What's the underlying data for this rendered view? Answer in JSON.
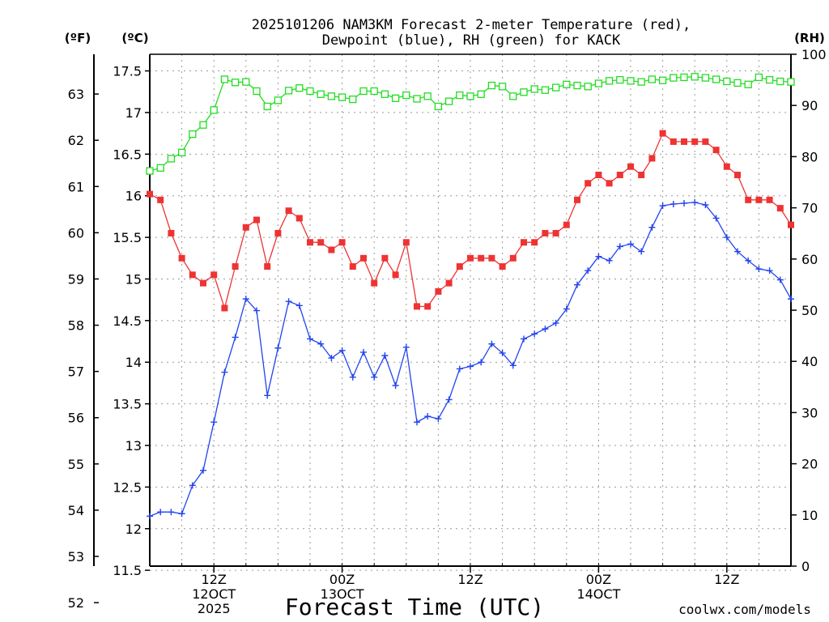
{
  "title_line1": "2025101206 NAM3KM Forecast 2-meter Temperature (red),",
  "title_line2": "Dewpoint (blue), RH (green) for KACK",
  "unit_f": "(ºF)",
  "unit_c": "(ºC)",
  "unit_rh": "(RH)",
  "xlabel": "Forecast Time (UTC)",
  "credit": "coolwx.com/models",
  "colors": {
    "temperature": "#ee3333",
    "dewpoint": "#2244ee",
    "rh": "#22dd22",
    "grid": "#999999"
  },
  "chart_data": {
    "type": "line",
    "title": "2025101206 NAM3KM Forecast 2-meter Temperature (red), Dewpoint (blue), RH (green) for KACK",
    "xlabel": "Forecast Time (UTC)",
    "x_unit": "forecast hour from 2025-10-12 06Z",
    "xlim": [
      0,
      60
    ],
    "x_ticks": [
      {
        "hour": 6,
        "lines": [
          "12Z",
          "12OCT",
          "2025"
        ]
      },
      {
        "hour": 18,
        "lines": [
          "00Z",
          "13OCT"
        ]
      },
      {
        "hour": 30,
        "lines": [
          "12Z"
        ]
      },
      {
        "hour": 42,
        "lines": [
          "00Z",
          "14OCT"
        ]
      },
      {
        "hour": 54,
        "lines": [
          "12Z"
        ]
      }
    ],
    "ylim_c": [
      11.55,
      17.7
    ],
    "y_ticks_c": [
      11.5,
      12,
      12.5,
      13,
      13.5,
      14,
      14.5,
      15,
      15.5,
      16,
      16.5,
      17,
      17.5
    ],
    "y_tick_labels_c": [
      "11.5",
      "12",
      "12.5",
      "13",
      "13.5",
      "14",
      "14.5",
      "15",
      "15.5",
      "16",
      "16.5",
      "17",
      "17.5"
    ],
    "y_ticks_f": [
      52,
      53,
      54,
      55,
      56,
      57,
      58,
      59,
      60,
      61,
      62,
      63
    ],
    "y_tick_labels_f": [
      "52",
      "53",
      "54",
      "55",
      "56",
      "57",
      "58",
      "59",
      "60",
      "61",
      "62",
      "63"
    ],
    "ylim_rh": [
      0,
      100
    ],
    "y_ticks_rh": [
      0,
      10,
      20,
      30,
      40,
      50,
      60,
      70,
      80,
      90,
      100
    ],
    "y_tick_labels_rh": [
      "0",
      "10",
      "20",
      "30",
      "40",
      "50",
      "60",
      "70",
      "80",
      "90",
      "100"
    ],
    "hours": [
      0,
      1,
      2,
      3,
      4,
      5,
      6,
      7,
      8,
      9,
      10,
      11,
      12,
      13,
      14,
      15,
      16,
      17,
      18,
      19,
      20,
      21,
      22,
      23,
      24,
      25,
      26,
      27,
      28,
      29,
      30,
      31,
      32,
      33,
      34,
      35,
      36,
      37,
      38,
      39,
      40,
      41,
      42,
      43,
      44,
      45,
      46,
      47,
      48,
      49,
      50,
      51,
      52,
      53,
      54,
      55,
      56,
      57,
      58,
      59,
      60
    ],
    "series": [
      {
        "name": "Temperature (red)",
        "unit": "C",
        "values": [
          16.02,
          15.95,
          15.55,
          15.25,
          15.05,
          14.95,
          15.05,
          14.65,
          15.15,
          15.62,
          15.71,
          15.15,
          15.55,
          15.82,
          15.73,
          15.44,
          15.44,
          15.35,
          15.44,
          15.15,
          15.25,
          14.95,
          15.25,
          15.05,
          15.44,
          14.67,
          14.67,
          14.85,
          14.95,
          15.15,
          15.25,
          15.25,
          15.25,
          15.15,
          15.25,
          15.44,
          15.44,
          15.55,
          15.55,
          15.65,
          15.95,
          16.15,
          16.25,
          16.15,
          16.25,
          16.35,
          16.25,
          16.45,
          16.75,
          16.65,
          16.65,
          16.65,
          16.65,
          16.55,
          16.35,
          16.25,
          15.95,
          15.95,
          15.95,
          15.85,
          15.65
        ]
      },
      {
        "name": "Dewpoint (blue)",
        "unit": "C",
        "values": [
          12.15,
          12.2,
          12.2,
          12.18,
          12.52,
          12.7,
          13.28,
          13.88,
          14.3,
          14.76,
          14.62,
          13.6,
          14.17,
          14.73,
          14.68,
          14.28,
          14.22,
          14.05,
          14.14,
          13.82,
          14.12,
          13.82,
          14.08,
          13.72,
          14.18,
          13.28,
          13.35,
          13.32,
          13.55,
          13.92,
          13.95,
          14.0,
          14.22,
          14.11,
          13.96,
          14.28,
          14.34,
          14.4,
          14.47,
          14.64,
          14.93,
          15.1,
          15.27,
          15.22,
          15.39,
          15.42,
          15.33,
          15.62,
          15.88,
          15.9,
          15.91,
          15.92,
          15.89,
          15.73,
          15.5,
          15.33,
          15.22,
          15.12,
          15.1,
          14.99,
          14.76
        ]
      },
      {
        "name": "RH (green)",
        "unit": "%",
        "values": [
          77.2,
          77.8,
          79.6,
          80.8,
          84.4,
          86.2,
          89.1,
          95.1,
          94.5,
          94.6,
          92.8,
          89.8,
          91.0,
          92.9,
          93.4,
          92.8,
          92.2,
          91.8,
          91.6,
          91.2,
          92.8,
          92.8,
          92.2,
          91.4,
          92.0,
          91.3,
          91.8,
          89.8,
          90.8,
          92.0,
          91.8,
          92.2,
          93.9,
          93.7,
          91.8,
          92.6,
          93.2,
          93.0,
          93.5,
          94.1,
          93.9,
          93.7,
          94.3,
          94.8,
          95.0,
          94.8,
          94.6,
          95.1,
          94.9,
          95.4,
          95.5,
          95.6,
          95.4,
          95.1,
          94.7,
          94.4,
          94.1,
          95.5,
          95.0,
          94.7,
          94.6
        ]
      }
    ]
  }
}
